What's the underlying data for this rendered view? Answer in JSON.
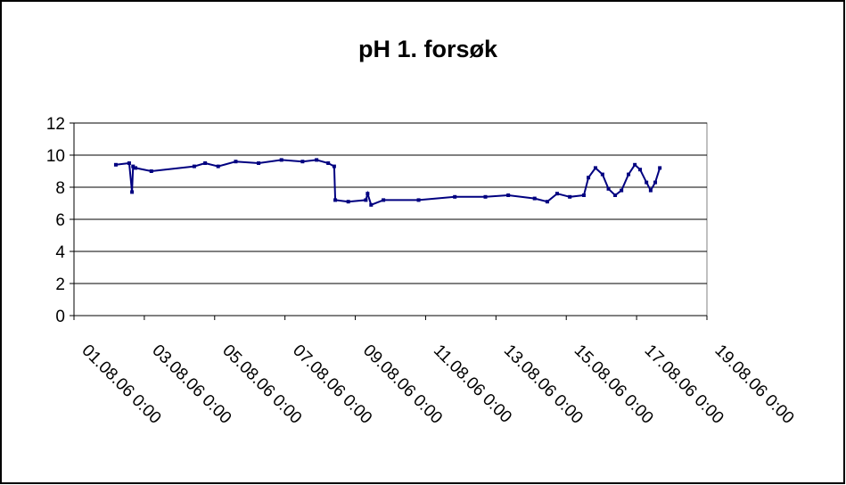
{
  "chart_data": {
    "type": "line",
    "title": "pH 1. forsøk",
    "series": [
      {
        "color": "#000080",
        "x": [
          38931.19,
          38931.57,
          38931.65,
          38931.68,
          38931.75,
          38932.2,
          38933.42,
          38933.73,
          38934.1,
          38934.6,
          38935.25,
          38935.9,
          38936.5,
          38936.9,
          38937.23,
          38937.4,
          38937.43,
          38937.8,
          38938.3,
          38938.35,
          38938.45,
          38938.8,
          38939.8,
          38940.83,
          38941.7,
          38942.35,
          38943.1,
          38943.46,
          38943.74,
          38944.1,
          38944.5,
          38944.63,
          38944.83,
          38945.03,
          38945.2,
          38945.39,
          38945.57,
          38945.77,
          38945.95,
          38946.1,
          38946.28,
          38946.4,
          38946.53,
          38946.66
        ],
        "values": [
          9.4,
          9.5,
          7.7,
          9.3,
          9.2,
          9.0,
          9.3,
          9.5,
          9.3,
          9.6,
          9.5,
          9.7,
          9.6,
          9.7,
          9.5,
          9.3,
          7.2,
          7.1,
          7.2,
          7.6,
          6.9,
          7.2,
          7.2,
          7.4,
          7.4,
          7.5,
          7.3,
          7.1,
          7.6,
          7.4,
          7.5,
          8.6,
          9.2,
          8.8,
          7.9,
          7.5,
          7.8,
          8.8,
          9.4,
          9.1,
          8.3,
          7.8,
          8.3,
          9.2
        ]
      }
    ],
    "xlim": [
      38930,
      38948
    ],
    "xticks": [
      {
        "value": 38930,
        "label": "01.08.06 0:00"
      },
      {
        "value": 38932,
        "label": "03.08.06 0:00"
      },
      {
        "value": 38934,
        "label": "05.08.06 0:00"
      },
      {
        "value": 38936,
        "label": "07.08.06 0:00"
      },
      {
        "value": 38938,
        "label": "09.08.06 0:00"
      },
      {
        "value": 38940,
        "label": "11.08.06 0:00"
      },
      {
        "value": 38942,
        "label": "13.08.06 0:00"
      },
      {
        "value": 38944,
        "label": "15.08.06 0:00"
      },
      {
        "value": 38946,
        "label": "17.08.06 0:00"
      },
      {
        "value": 38948,
        "label": "19.08.06 0:00"
      }
    ],
    "ylim": [
      0,
      12
    ],
    "yticks": [
      0,
      2,
      4,
      6,
      8,
      10,
      12
    ],
    "grid": true
  }
}
